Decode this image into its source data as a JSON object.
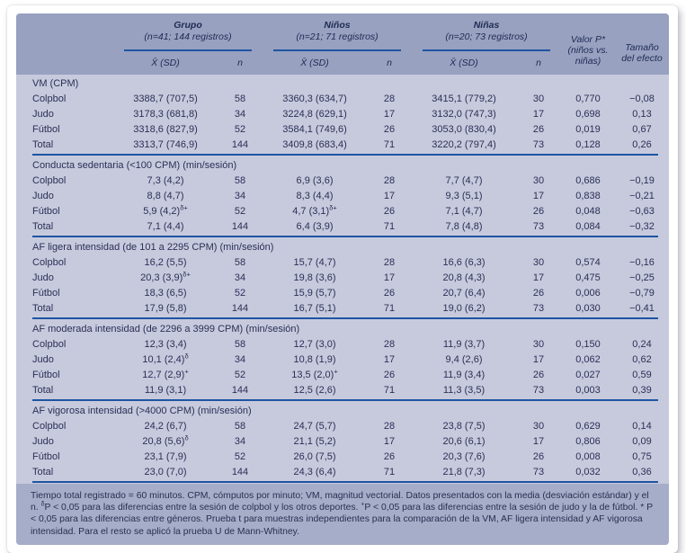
{
  "table": {
    "groups": [
      {
        "title": "Grupo",
        "subtitle": "(n=41; 144 registros)"
      },
      {
        "title": "Niños",
        "subtitle": "(n=21; 71 registros)"
      },
      {
        "title": "Niñas",
        "subtitle": "(n=20; 73 registros)"
      }
    ],
    "subheaders": {
      "mean": "X̄ (SD)",
      "n": "n"
    },
    "p_header": {
      "l1": "Valor P*",
      "l2": "(niños vs.",
      "l3": "niñas)"
    },
    "effect_header": {
      "l1": "Tamaño",
      "l2": "del efecto"
    },
    "sections": [
      {
        "title": "VM (CPM)",
        "rows": [
          {
            "label": "Colpbol",
            "grupo": "3388,7 (707,5)",
            "grupo_sup": "",
            "grupo_n": "58",
            "ninos": "3360,3 (634,7)",
            "ninos_sup": "",
            "ninos_n": "28",
            "ninas": "3415,1 (779,2)",
            "ninas_sup": "",
            "ninas_n": "30",
            "p": "0,770",
            "efecto": "−0,08"
          },
          {
            "label": "Judo",
            "grupo": "3178,3 (681,8)",
            "grupo_sup": "",
            "grupo_n": "34",
            "ninos": "3224,8 (629,1)",
            "ninos_sup": "",
            "ninos_n": "17",
            "ninas": "3132,0 (747,3)",
            "ninas_sup": "",
            "ninas_n": "17",
            "p": "0,698",
            "efecto": "0,13"
          },
          {
            "label": "Fútbol",
            "grupo": "3318,6 (827,9)",
            "grupo_sup": "",
            "grupo_n": "52",
            "ninos": "3584,1 (749,6)",
            "ninos_sup": "",
            "ninos_n": "26",
            "ninas": "3053,0 (830,4)",
            "ninas_sup": "",
            "ninas_n": "26",
            "p": "0,019",
            "efecto": "0,67"
          },
          {
            "label": "Total",
            "grupo": "3313,7 (746,9)",
            "grupo_sup": "",
            "grupo_n": "144",
            "ninos": "3409,8 (683,4)",
            "ninos_sup": "",
            "ninos_n": "71",
            "ninas": "3220,2 (797,4)",
            "ninas_sup": "",
            "ninas_n": "73",
            "p": "0,128",
            "efecto": "0,26"
          }
        ]
      },
      {
        "title": "Conducta sedentaria (<100 CPM) (min/sesión)",
        "rows": [
          {
            "label": "Colpbol",
            "grupo": "7,3 (4,2)",
            "grupo_sup": "",
            "grupo_n": "58",
            "ninos": "6,9 (3,6)",
            "ninos_sup": "",
            "ninos_n": "28",
            "ninas": "7,7 (4,7)",
            "ninas_sup": "",
            "ninas_n": "30",
            "p": "0,686",
            "efecto": "−0,19"
          },
          {
            "label": "Judo",
            "grupo": "8,8 (4,7)",
            "grupo_sup": "",
            "grupo_n": "34",
            "ninos": "8,3 (4,4)",
            "ninos_sup": "",
            "ninos_n": "17",
            "ninas": "9,3 (5,1)",
            "ninas_sup": "",
            "ninas_n": "17",
            "p": "0,838",
            "efecto": "−0,21"
          },
          {
            "label": "Fútbol",
            "grupo": "5,9 (4,2)",
            "grupo_sup": "δ+",
            "grupo_n": "52",
            "ninos": "4,7 (3,1)",
            "ninos_sup": "δ+",
            "ninos_n": "26",
            "ninas": "7,1 (4,7)",
            "ninas_sup": "",
            "ninas_n": "26",
            "p": "0,048",
            "efecto": "−0,63"
          },
          {
            "label": "Total",
            "grupo": "7,1 (4,4)",
            "grupo_sup": "",
            "grupo_n": "144",
            "ninos": "6,4 (3,9)",
            "ninos_sup": "",
            "ninos_n": "71",
            "ninas": "7,8 (4,8)",
            "ninas_sup": "",
            "ninas_n": "73",
            "p": "0,084",
            "efecto": "−0,32"
          }
        ]
      },
      {
        "title": "AF ligera intensidad (de 101 a 2295 CPM) (min/sesión)",
        "rows": [
          {
            "label": "Colpbol",
            "grupo": "16,2 (5,5)",
            "grupo_sup": "",
            "grupo_n": "58",
            "ninos": "15,7 (4,7)",
            "ninos_sup": "",
            "ninos_n": "28",
            "ninas": "16,6 (6,3)",
            "ninas_sup": "",
            "ninas_n": "30",
            "p": "0,574",
            "efecto": "−0,16"
          },
          {
            "label": "Judo",
            "grupo": "20,3 (3,9)",
            "grupo_sup": "δ+",
            "grupo_n": "34",
            "ninos": "19,8 (3,6)",
            "ninos_sup": "",
            "ninos_n": "17",
            "ninas": "20,8 (4,3)",
            "ninas_sup": "",
            "ninas_n": "17",
            "p": "0,475",
            "efecto": "−0,25"
          },
          {
            "label": "Fútbol",
            "grupo": "18,3 (6,5)",
            "grupo_sup": "",
            "grupo_n": "52",
            "ninos": "15,9 (5,7)",
            "ninos_sup": "",
            "ninos_n": "26",
            "ninas": "20,7 (6,4)",
            "ninas_sup": "",
            "ninas_n": "26",
            "p": "0,006",
            "efecto": "−0,79"
          },
          {
            "label": "Total",
            "grupo": "17,9 (5,8)",
            "grupo_sup": "",
            "grupo_n": "144",
            "ninos": "16,7 (5,1)",
            "ninos_sup": "",
            "ninos_n": "71",
            "ninas": "19,0 (6,2)",
            "ninas_sup": "",
            "ninas_n": "73",
            "p": "0,030",
            "efecto": "−0,41"
          }
        ]
      },
      {
        "title": "AF moderada intensidad (de 2296 a 3999 CPM) (min/sesión)",
        "rows": [
          {
            "label": "Colpbol",
            "grupo": "12,3 (3,4)",
            "grupo_sup": "",
            "grupo_n": "58",
            "ninos": "12,7 (3,0)",
            "ninos_sup": "",
            "ninos_n": "28",
            "ninas": "11,9 (3,7)",
            "ninas_sup": "",
            "ninas_n": "30",
            "p": "0,150",
            "efecto": "0,24"
          },
          {
            "label": "Judo",
            "grupo": "10,1 (2,4)",
            "grupo_sup": "δ",
            "grupo_n": "34",
            "ninos": "10,8 (1,9)",
            "ninos_sup": "",
            "ninos_n": "17",
            "ninas": "9,4 (2,6)",
            "ninas_sup": "",
            "ninas_n": "17",
            "p": "0,062",
            "efecto": "0,62"
          },
          {
            "label": "Fútbol",
            "grupo": "12,7 (2,9)",
            "grupo_sup": "+",
            "grupo_n": "52",
            "ninos": "13,5 (2,0)",
            "ninos_sup": "+",
            "ninos_n": "26",
            "ninas": "11,9 (3,4)",
            "ninas_sup": "",
            "ninas_n": "26",
            "p": "0,027",
            "efecto": "0,59"
          },
          {
            "label": "Total",
            "grupo": "11,9 (3,1)",
            "grupo_sup": "",
            "grupo_n": "144",
            "ninos": "12,5 (2,6)",
            "ninos_sup": "",
            "ninos_n": "71",
            "ninas": "11,3 (3,5)",
            "ninas_sup": "",
            "ninas_n": "73",
            "p": "0,003",
            "efecto": "0,39"
          }
        ]
      },
      {
        "title": "AF vigorosa intensidad (>4000 CPM) (min/sesión)",
        "rows": [
          {
            "label": "Colpbol",
            "grupo": "24,2 (6,7)",
            "grupo_sup": "",
            "grupo_n": "58",
            "ninos": "24,7 (5,7)",
            "ninos_sup": "",
            "ninos_n": "28",
            "ninas": "23,8 (7,5)",
            "ninas_sup": "",
            "ninas_n": "30",
            "p": "0,629",
            "efecto": "0,14"
          },
          {
            "label": "Judo",
            "grupo": "20,8 (5,6)",
            "grupo_sup": "δ",
            "grupo_n": "34",
            "ninos": "21,1 (5,2)",
            "ninos_sup": "",
            "ninos_n": "17",
            "ninas": "20,6 (6,1)",
            "ninas_sup": "",
            "ninas_n": "17",
            "p": "0,806",
            "efecto": "0,09"
          },
          {
            "label": "Fútbol",
            "grupo": "23,1 (7,9)",
            "grupo_sup": "",
            "grupo_n": "52",
            "ninos": "26,0 (7,5)",
            "ninos_sup": "",
            "ninos_n": "26",
            "ninas": "20,3 (7,6)",
            "ninas_sup": "",
            "ninas_n": "26",
            "p": "0,008",
            "efecto": "0,75"
          },
          {
            "label": "Total",
            "grupo": "23,0 (7,0)",
            "grupo_sup": "",
            "grupo_n": "144",
            "ninos": "24,3 (6,4)",
            "ninos_sup": "",
            "ninos_n": "71",
            "ninas": "21,8 (7,3)",
            "ninas_sup": "",
            "ninas_n": "73",
            "p": "0,032",
            "efecto": "0,36"
          }
        ]
      }
    ],
    "footnote_segments": [
      {
        "text": "Tiempo total registrado = 60 minutos. CPM, cómputos por minuto; VM, magnitud vectorial. Datos presentados con la media (desviación estándar) y el n. ",
        "sup": false
      },
      {
        "text": "δ",
        "sup": true
      },
      {
        "text": "P < 0,05 para las diferencias entre la sesión de colpbol y los otros deportes. ",
        "sup": false
      },
      {
        "text": "+",
        "sup": true
      },
      {
        "text": "P < 0,05 para las diferencias entre la sesión de judo y la de fútbol. * P < 0,05 para las diferencias entre géneros.  Prueba t para muestras independientes para la comparación de la VM, AF ligera intensidad y AF vigorosa intensidad. Para el resto se aplicó la prueba U de Mann-Whitney.",
        "sup": false
      }
    ],
    "colors": {
      "header_bg": "#98a1c0",
      "body_bg": "#c7cadd",
      "footer_bg": "#a6adc9",
      "rule_blue": "#1e55a2",
      "text": "#2b2f55"
    }
  }
}
